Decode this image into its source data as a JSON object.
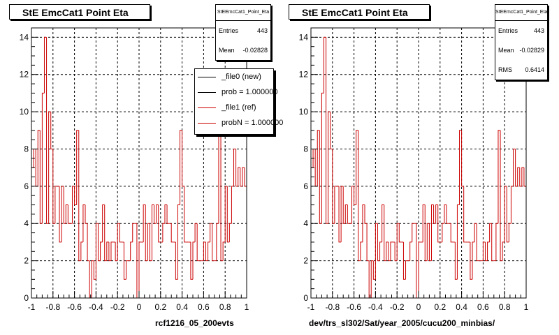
{
  "left": {
    "title": "StE EmcCat1 Point Eta",
    "stats": {
      "name": "StEEmcCat1_Point_Eta",
      "rows": [
        {
          "label": "Entries",
          "value": "443"
        },
        {
          "label": "Mean",
          "value": "-0.02828"
        }
      ]
    },
    "legend": [
      {
        "label": "_file0 (new)",
        "color": "#000000"
      },
      {
        "label": "prob = 1.000000",
        "color": "#000000"
      },
      {
        "label": "_file1 (ref)",
        "color": "#cc0000"
      },
      {
        "label": "probN = 1.000000",
        "color": "#cc0000"
      }
    ],
    "xcaption": "rcf1216_05_200evts"
  },
  "right": {
    "title": "StE EmcCat1 Point Eta",
    "stats": {
      "name": "StEEmcCat1_Point_Eta",
      "rows": [
        {
          "label": "Entries",
          "value": "443"
        },
        {
          "label": "Mean",
          "value": "-0.02829"
        },
        {
          "label": "RMS",
          "value": "0.6414"
        }
      ]
    },
    "xcaption": "dev/trs_sl302/Sat/year_2005/cucu200_minbias/"
  },
  "chart_data": {
    "type": "bar",
    "xlim": [
      -1,
      1
    ],
    "ylim": [
      0,
      14.5
    ],
    "xticks": [
      "-1",
      "-0.8",
      "-0.6",
      "-0.4",
      "-0.2",
      "0",
      "0.2",
      "0.4",
      "0.6",
      "0.8",
      "1"
    ],
    "yticks": [
      "0",
      "2",
      "4",
      "6",
      "8",
      "10",
      "12",
      "14"
    ],
    "grid": true,
    "bins": 100,
    "line_color": "#cc0000",
    "values": [
      7,
      8,
      6,
      9,
      4,
      11,
      14,
      4,
      10,
      8,
      4,
      6,
      6,
      3,
      6,
      4,
      5,
      4,
      4,
      6,
      5,
      9,
      2,
      3,
      5,
      4,
      2,
      0,
      2,
      1,
      4,
      2,
      3,
      5,
      2,
      3,
      2,
      3,
      3,
      2,
      4,
      3,
      3,
      1,
      2,
      2,
      3,
      4,
      4,
      0,
      3,
      3,
      5,
      2,
      4,
      2,
      5,
      4,
      5,
      3,
      3,
      4,
      5,
      4,
      4,
      3,
      3,
      1,
      5,
      9,
      6,
      3,
      3,
      3,
      1,
      3,
      4,
      2,
      2,
      2,
      3,
      2,
      3,
      4,
      2,
      2,
      4,
      9,
      2,
      3,
      6,
      3,
      4,
      6,
      8,
      6,
      7,
      6,
      7,
      6
    ]
  }
}
